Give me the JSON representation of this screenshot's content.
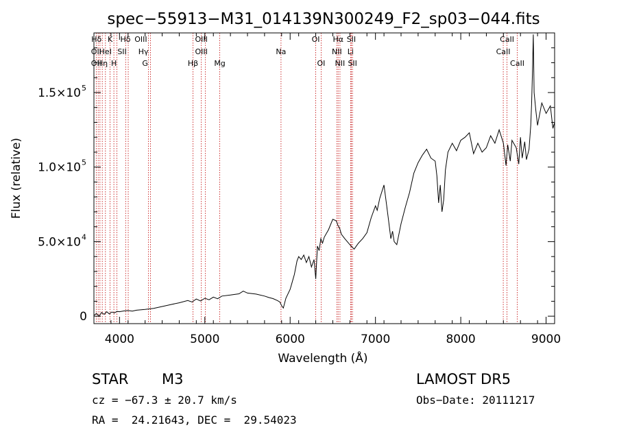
{
  "chart_data": {
    "type": "line",
    "title": "spec−55913−M31_014139N300249_F2_sp03−044.fits",
    "xlabel": "Wavelength (Å)",
    "ylabel": "Flux (relative)",
    "xlim": [
      3700,
      9100
    ],
    "ylim": [
      -5000,
      190000
    ],
    "x_ticks": [
      4000,
      5000,
      6000,
      7000,
      8000,
      9000
    ],
    "y_ticks": [
      {
        "value": 0,
        "label": "0"
      },
      {
        "value": 50000,
        "label": "5.0×10",
        "exp": "4"
      },
      {
        "value": 100000,
        "label": "1.0×10",
        "exp": "5"
      },
      {
        "value": 150000,
        "label": "1.5×10",
        "exp": "5"
      }
    ],
    "series": [
      {
        "color": "#000000",
        "x": [
          3700,
          3730,
          3760,
          3790,
          3820,
          3850,
          3880,
          3910,
          3940,
          3970,
          4000,
          4050,
          4100,
          4150,
          4200,
          4300,
          4400,
          4500,
          4600,
          4700,
          4800,
          4850,
          4900,
          4950,
          5000,
          5050,
          5100,
          5150,
          5200,
          5300,
          5400,
          5450,
          5500,
          5600,
          5700,
          5750,
          5800,
          5850,
          5880,
          5900,
          5920,
          5950,
          6000,
          6020,
          6050,
          6080,
          6100,
          6130,
          6160,
          6190,
          6220,
          6250,
          6280,
          6300,
          6320,
          6340,
          6360,
          6380,
          6400,
          6450,
          6500,
          6540,
          6560,
          6580,
          6600,
          6640,
          6700,
          6750,
          6800,
          6850,
          6900,
          6950,
          7000,
          7020,
          7050,
          7100,
          7130,
          7150,
          7180,
          7200,
          7220,
          7250,
          7300,
          7350,
          7400,
          7450,
          7500,
          7550,
          7600,
          7650,
          7700,
          7720,
          7740,
          7760,
          7780,
          7800,
          7820,
          7850,
          7900,
          7950,
          8000,
          8050,
          8100,
          8150,
          8200,
          8250,
          8300,
          8350,
          8400,
          8450,
          8500,
          8530,
          8550,
          8580,
          8600,
          8650,
          8680,
          8700,
          8720,
          8750,
          8770,
          8800,
          8820,
          8830,
          8840,
          8850,
          8860,
          8880,
          8900,
          8950,
          9000,
          9050,
          9080,
          9100
        ],
        "y": [
          500,
          1800,
          0,
          2500,
          1200,
          3000,
          1500,
          2800,
          2200,
          3200,
          3000,
          3500,
          3800,
          3400,
          4000,
          4500,
          5200,
          6500,
          7800,
          9000,
          10500,
          9500,
          11500,
          10200,
          12000,
          11000,
          12800,
          11700,
          13500,
          14200,
          15000,
          16800,
          15500,
          14800,
          13500,
          12500,
          11800,
          10500,
          9500,
          7000,
          5500,
          12000,
          18000,
          22000,
          28000,
          37000,
          40000,
          38000,
          41000,
          36000,
          40000,
          33000,
          38000,
          25000,
          47000,
          44000,
          52000,
          49000,
          53000,
          58000,
          65000,
          64000,
          61000,
          59000,
          55000,
          52000,
          48000,
          45000,
          49000,
          52000,
          56000,
          66000,
          74000,
          71000,
          79000,
          88000,
          75000,
          66000,
          52000,
          57000,
          50000,
          48000,
          62000,
          73000,
          83000,
          96000,
          103000,
          108000,
          112000,
          106000,
          104000,
          94000,
          76000,
          88000,
          70000,
          78000,
          98000,
          110000,
          116000,
          111000,
          118000,
          120000,
          123000,
          109000,
          116000,
          110000,
          113000,
          121000,
          116000,
          125000,
          116000,
          101000,
          115000,
          104000,
          118000,
          113000,
          102000,
          120000,
          106000,
          117000,
          105000,
          112000,
          128000,
          142000,
          162000,
          189000,
          150000,
          138000,
          128000,
          143000,
          136000,
          141000,
          126000,
          130000
        ]
      }
    ],
    "line_labels": [
      {
        "x": 3730,
        "label": "Hδ",
        "row": 0
      },
      {
        "x": 3727,
        "label": "OII",
        "row": 1
      },
      {
        "x": 3727,
        "label": "OII",
        "row": 2
      },
      {
        "x": 3800,
        "label": "Hη",
        "row": 2
      },
      {
        "x": 3835,
        "label": "HeI",
        "row": 1
      },
      {
        "x": 3890,
        "label": "K",
        "row": 0
      },
      {
        "x": 3934,
        "label": "H",
        "row": 2
      },
      {
        "x": 4030,
        "label": "SII",
        "row": 1
      },
      {
        "x": 4070,
        "label": "Hδ",
        "row": 0
      },
      {
        "x": 4250,
        "label": "OIII",
        "row": 0
      },
      {
        "x": 4280,
        "label": "Hγ",
        "row": 1
      },
      {
        "x": 4300,
        "label": "G",
        "row": 2
      },
      {
        "x": 4861,
        "label": "Hβ",
        "row": 2
      },
      {
        "x": 4959,
        "label": "OIII",
        "row": 0
      },
      {
        "x": 4959,
        "label": "OIII",
        "row": 1
      },
      {
        "x": 5175,
        "label": "Mg",
        "row": 2
      },
      {
        "x": 5893,
        "label": "Na",
        "row": 1
      },
      {
        "x": 6300,
        "label": "OI",
        "row": 0
      },
      {
        "x": 6363,
        "label": "OI",
        "row": 2
      },
      {
        "x": 6563,
        "label": "Hα",
        "row": 0
      },
      {
        "x": 6548,
        "label": "NII",
        "row": 1
      },
      {
        "x": 6584,
        "label": "NII",
        "row": 2
      },
      {
        "x": 6717,
        "label": "SII",
        "row": 0
      },
      {
        "x": 6708,
        "label": "Li",
        "row": 1
      },
      {
        "x": 6731,
        "label": "SII",
        "row": 2
      },
      {
        "x": 8542,
        "label": "CaII",
        "row": 0
      },
      {
        "x": 8498,
        "label": "CaII",
        "row": 1
      },
      {
        "x": 8662,
        "label": "CaII",
        "row": 2
      }
    ],
    "line_positions": [
      3727,
      3750,
      3771,
      3798,
      3835,
      3889,
      3934,
      3969,
      4072,
      4102,
      4340,
      4363,
      4861,
      4959,
      5007,
      5175,
      5893,
      6300,
      6363,
      6548,
      6563,
      6584,
      6708,
      6717,
      6731,
      8498,
      8542,
      8662
    ]
  },
  "info": {
    "object_class": "STAR",
    "subclass": "M3",
    "survey": "LAMOST DR5",
    "velocity": "cz = −67.3 ± 20.7 km/s",
    "obs_date": "Obs−Date: 20111217",
    "coords": "RA =  24.21643, DEC =  29.54023"
  }
}
